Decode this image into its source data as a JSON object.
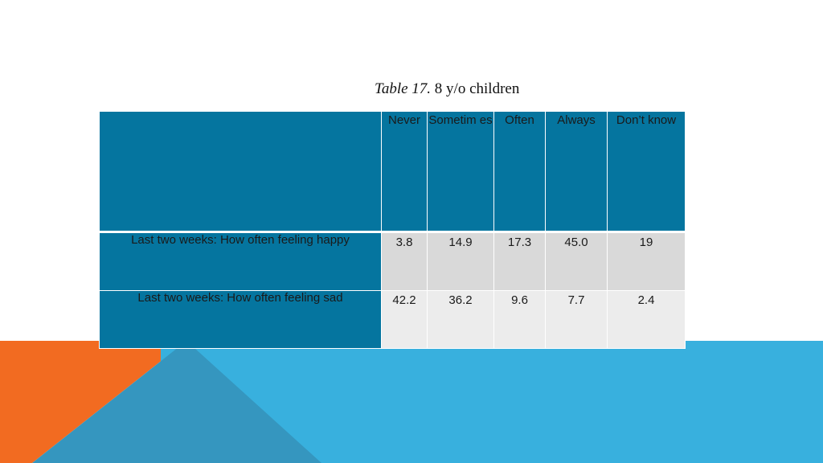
{
  "caption": {
    "italic_part": "Table 17.",
    "rest": "8 y/o children"
  },
  "table": {
    "columns": [
      "Never",
      "Sometimes",
      "Often",
      "Always",
      "Don’t know"
    ],
    "column_display": [
      "Never",
      "Sometim es",
      "Often",
      "Always",
      "Don’t know"
    ],
    "rows": [
      {
        "label": "Last two weeks: How often feeling happy",
        "values": [
          "3.8",
          "14.9",
          "17.3",
          "45.0",
          "19"
        ]
      },
      {
        "label": "Last two weeks: How often feeling sad",
        "values": [
          "42.2",
          "36.2",
          "9.6",
          "7.7",
          "2.4"
        ]
      }
    ]
  },
  "colors": {
    "header_blue": "#05759f",
    "row_gray_1": "#d9d9d9",
    "row_gray_2": "#ececec",
    "accent_orange": "#f26b21",
    "accent_lightblue": "#38b0de",
    "accent_midblue": "#3596bf"
  }
}
